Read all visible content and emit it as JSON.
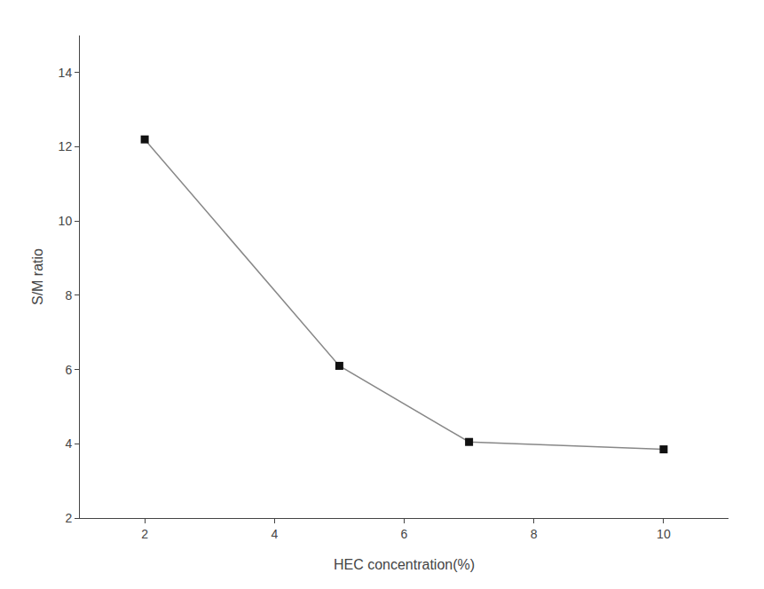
{
  "chart_data": {
    "type": "line",
    "x": [
      2,
      5,
      7,
      10
    ],
    "values": [
      12.2,
      6.1,
      4.05,
      3.85
    ],
    "xlabel": "HEC concentration(%)",
    "ylabel": "S/M ratio",
    "xlim": [
      1,
      11
    ],
    "ylim": [
      2,
      15
    ],
    "xticks": [
      2,
      4,
      6,
      8,
      10
    ],
    "yticks": [
      2,
      4,
      6,
      8,
      10,
      12,
      14
    ],
    "color": "#888888",
    "marker": "square",
    "grid": false
  }
}
